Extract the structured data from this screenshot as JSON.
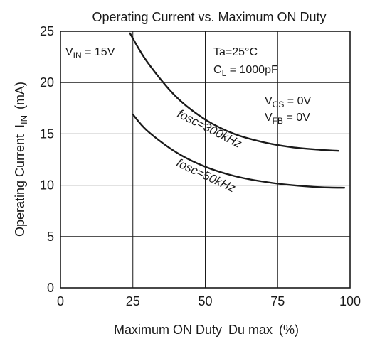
{
  "chart_data": {
    "type": "line",
    "title": "Operating Current vs. Maximum ON Duty",
    "xlabel": {
      "main": "Maximum ON Duty",
      "var": "Du max",
      "unit": "(%)"
    },
    "ylabel": {
      "main": "Operating Current",
      "sym": "I",
      "sub": "IN",
      "unit": "(mA)"
    },
    "xlim": [
      0,
      100
    ],
    "ylim": [
      0,
      25
    ],
    "xticks": [
      0,
      25,
      50,
      75,
      100
    ],
    "yticks": [
      0,
      5,
      10,
      15,
      20,
      25
    ],
    "grid": true,
    "series": [
      {
        "name": "fosc=300kHz",
        "points": [
          [
            24,
            24.8
          ],
          [
            30,
            22.0
          ],
          [
            40,
            18.6
          ],
          [
            50,
            16.4
          ],
          [
            60,
            15.0
          ],
          [
            70,
            14.2
          ],
          [
            80,
            13.7
          ],
          [
            90,
            13.45
          ],
          [
            96,
            13.35
          ]
        ]
      },
      {
        "name": "fosc=50kHz",
        "points": [
          [
            25,
            16.9
          ],
          [
            30,
            15.3
          ],
          [
            40,
            13.2
          ],
          [
            50,
            11.8
          ],
          [
            60,
            10.9
          ],
          [
            70,
            10.35
          ],
          [
            80,
            10.0
          ],
          [
            90,
            9.8
          ],
          [
            98,
            9.75
          ]
        ]
      }
    ],
    "annotations": {
      "vin": {
        "pre": "V",
        "sub": "IN",
        "post": " = 15V"
      },
      "ta": "Ta=25°C",
      "cl": {
        "pre": "C",
        "sub": "L",
        "post": " = 1000pF"
      },
      "vcs": {
        "pre": "V",
        "sub": "CS",
        "post": " = 0V"
      },
      "vfb": {
        "pre": "V",
        "sub": "FB",
        "post": " = 0V"
      }
    }
  }
}
